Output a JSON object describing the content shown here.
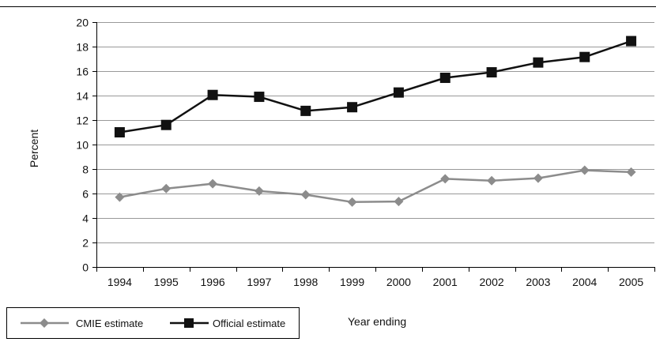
{
  "chart_data": {
    "type": "line",
    "title": "",
    "xlabel": "Year ending",
    "ylabel": "Percent",
    "categories": [
      "1994",
      "1995",
      "1996",
      "1997",
      "1998",
      "1999",
      "2000",
      "2001",
      "2002",
      "2003",
      "2004",
      "2005"
    ],
    "ylim": [
      0,
      20
    ],
    "yticks": [
      0,
      2,
      4,
      6,
      8,
      10,
      12,
      14,
      16,
      18,
      20
    ],
    "grid": "horizontal",
    "legend_position": "bottom-left",
    "series": [
      {
        "name": "CMIE estimate",
        "marker": "diamond",
        "color": "#8c8c8c",
        "values": [
          5.7,
          6.4,
          6.8,
          6.2,
          5.9,
          5.3,
          5.35,
          7.2,
          7.05,
          7.25,
          7.9,
          7.75
        ]
      },
      {
        "name": "Official estimate",
        "marker": "square",
        "color": "#111111",
        "values": [
          11.0,
          11.6,
          14.05,
          13.9,
          12.75,
          13.05,
          14.25,
          15.45,
          15.9,
          16.7,
          17.15,
          18.45
        ]
      }
    ]
  }
}
